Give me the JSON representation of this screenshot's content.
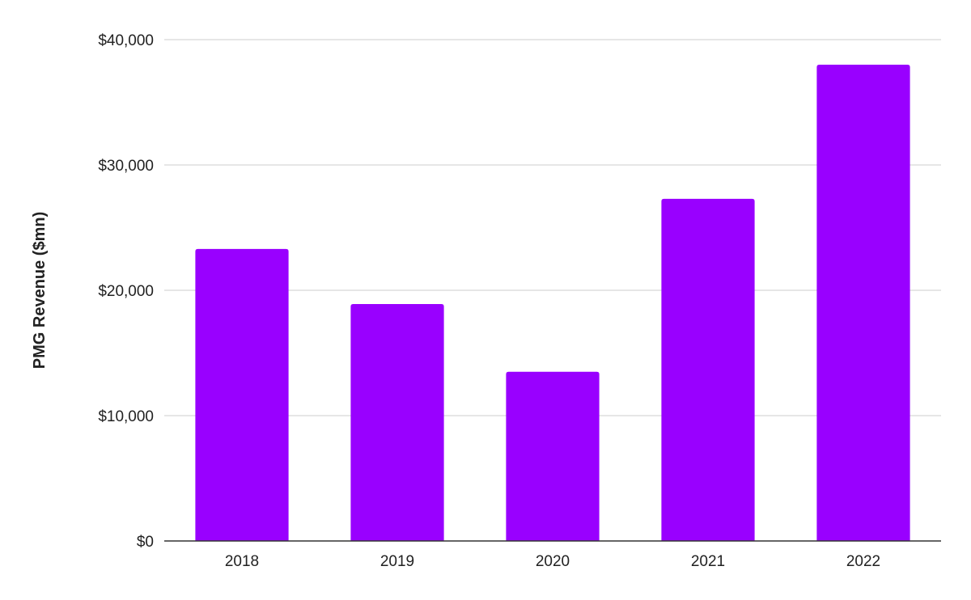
{
  "chart_data": {
    "type": "bar",
    "title": "",
    "xlabel": "",
    "ylabel": "PMG Revenue ($mn)",
    "categories": [
      "2018",
      "2019",
      "2020",
      "2021",
      "2022"
    ],
    "values": [
      23300,
      18900,
      13500,
      27300,
      38000
    ],
    "ylim": [
      0,
      40000
    ],
    "yticks": [
      0,
      10000,
      20000,
      30000,
      40000
    ],
    "ytick_labels": [
      "$0",
      "$10,000",
      "$20,000",
      "$30,000",
      "$40,000"
    ],
    "grid": true,
    "legend": "none",
    "bar_color": "#9900ff"
  }
}
